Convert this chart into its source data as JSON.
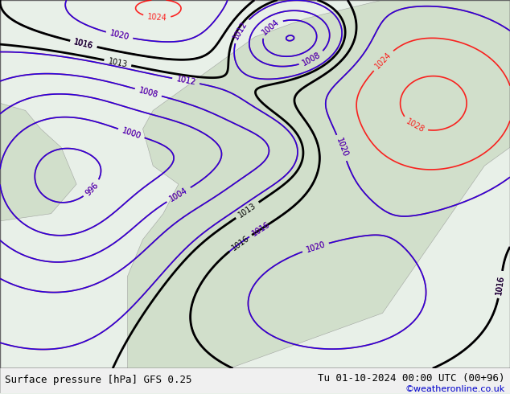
{
  "title_left": "Surface pressure [hPa] GFS 0.25",
  "title_right": "Tu 01-10-2024 00:00 UTC (00+96)",
  "credit": "©weatheronline.co.uk",
  "bg_color": "#e8f0e8",
  "land_color": "#c8dcc8",
  "sea_color": "#d0e8f0",
  "label_fontsize": 9,
  "credit_color": "#0000cc",
  "bottom_bar_color": "#f0f0f0",
  "figsize": [
    6.34,
    4.9
  ],
  "dpi": 100
}
